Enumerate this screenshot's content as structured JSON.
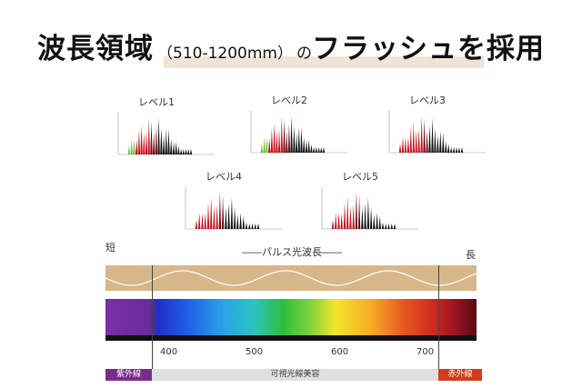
{
  "title": {
    "main": "波長領域",
    "range": "（510-1200mm）",
    "particle": "の",
    "tail": "フラッシュを採用"
  },
  "levels": [
    "レベル1",
    "レベル2",
    "レベル3",
    "レベル4",
    "レベル5"
  ],
  "wavelength_diagram": {
    "short_label": "短",
    "long_label": "長",
    "pulse_label": "――パルス光波長――",
    "ticks": [
      "400",
      "500",
      "600",
      "700"
    ],
    "categories": {
      "ultraviolet": "紫外線",
      "visible": "可視光線美容",
      "infrared": "赤外線"
    },
    "colors": {
      "ultraviolet": "#7b2c8a",
      "visible": "#e0e0e0",
      "infrared": "#d13c1a",
      "band": "#d7b68a"
    }
  }
}
